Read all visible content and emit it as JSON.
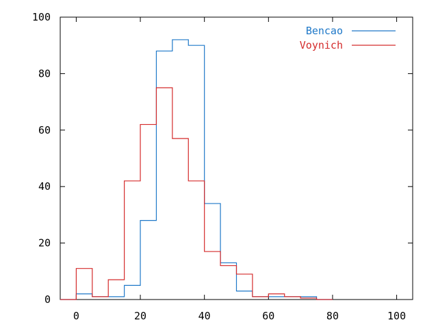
{
  "chart_data": {
    "type": "line",
    "step": true,
    "xlim": [
      -5,
      105
    ],
    "ylim": [
      0,
      100
    ],
    "x_ticks": [
      0,
      20,
      40,
      60,
      80,
      100
    ],
    "y_ticks": [
      0,
      20,
      40,
      60,
      80,
      100
    ],
    "grid": false,
    "legend_position": "top-right",
    "series": [
      {
        "name": "Bencao",
        "color": "#1e78c8",
        "x": [
          -5,
          0,
          5,
          10,
          15,
          20,
          25,
          30,
          35,
          40,
          45,
          50,
          55,
          60,
          65,
          70,
          75
        ],
        "values": [
          0,
          2,
          1,
          1,
          5,
          28,
          88,
          92,
          90,
          34,
          13,
          3,
          1,
          1,
          1,
          1,
          0
        ]
      },
      {
        "name": "Voynich",
        "color": "#d42a2a",
        "x": [
          -5,
          0,
          5,
          10,
          15,
          20,
          25,
          30,
          35,
          40,
          45,
          50,
          55,
          60,
          65,
          70,
          75
        ],
        "values": [
          0,
          11,
          1,
          7,
          42,
          62,
          75,
          57,
          42,
          17,
          12,
          9,
          1,
          2,
          1,
          0.5,
          0
        ]
      }
    ]
  }
}
